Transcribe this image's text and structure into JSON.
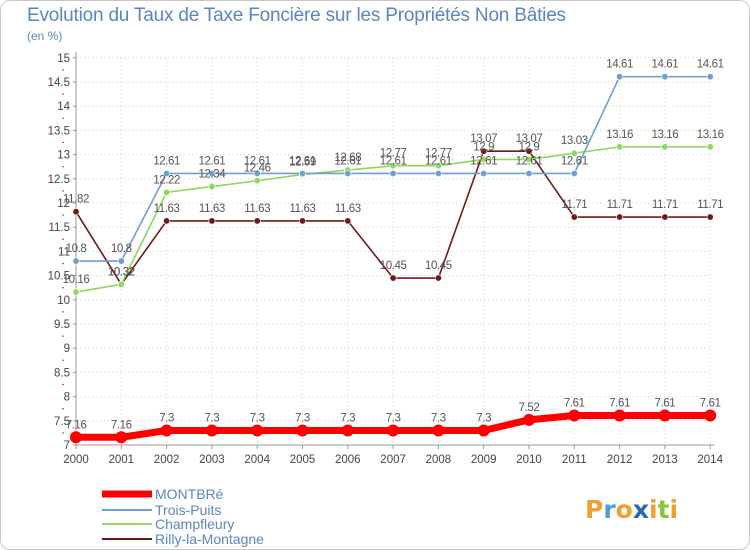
{
  "chart_data": {
    "type": "line",
    "title": "Evolution du Taux de Taxe Foncière sur les Propriétés Non Bâties",
    "ylabel": "(en %)",
    "xlabel": "",
    "ylim": [
      7,
      15
    ],
    "yticks": [
      "7",
      "7.5",
      "8",
      "8.5",
      "9",
      "9.5",
      "10",
      "10.5",
      "11",
      "11.5",
      "12",
      "12.5",
      "13",
      "13.5",
      "14",
      "14.5",
      "15"
    ],
    "categories": [
      "2000",
      "2001",
      "2002",
      "2003",
      "2004",
      "2005",
      "2006",
      "2007",
      "2008",
      "2009",
      "2010",
      "2011",
      "2012",
      "2013",
      "2014"
    ],
    "series": [
      {
        "name": "Rilly-la-Montagne",
        "color": "#6e1a1a",
        "values": [
          11.82,
          10.32,
          11.63,
          11.63,
          11.63,
          11.63,
          11.63,
          10.45,
          10.45,
          13.07,
          13.07,
          11.71,
          11.71,
          11.71,
          11.71
        ],
        "labels": [
          "11.82",
          "10.32",
          "11.63",
          "11.63",
          "11.63",
          "11.63",
          "11.63",
          "10.45",
          "10.45",
          "13.07",
          "13.07",
          "11.71",
          "11.71",
          "11.71",
          "11.71"
        ]
      },
      {
        "name": "Champfleury",
        "color": "#8ed85c",
        "values": [
          10.16,
          10.32,
          12.22,
          12.34,
          12.46,
          12.59,
          12.68,
          12.77,
          12.77,
          12.9,
          12.9,
          13.03,
          13.16,
          13.16,
          13.16
        ],
        "labels": [
          "10.16",
          "10.32",
          "12.22",
          "12.34",
          "12.46",
          "12.59",
          "12.68",
          "12.77",
          "12.77",
          "12.9",
          "12.9",
          "13.03",
          "13.16",
          "13.16",
          "13.16"
        ]
      },
      {
        "name": "Trois-Puits",
        "color": "#6f9fd2",
        "values": [
          10.8,
          10.8,
          12.61,
          12.61,
          12.61,
          12.61,
          12.61,
          12.61,
          12.61,
          12.61,
          12.61,
          12.61,
          14.61,
          14.61,
          14.61
        ],
        "labels": [
          "10.8",
          "10.8",
          "12.61",
          "12.61",
          "12.61",
          "12.61",
          "12.61",
          "12.61",
          "12.61",
          "12.61",
          "12.61",
          "12.61",
          "14.61",
          "14.61",
          "14.61"
        ]
      },
      {
        "name": "MONTBRé",
        "color": "#ff0000",
        "values": [
          7.16,
          7.16,
          7.3,
          7.3,
          7.3,
          7.3,
          7.3,
          7.3,
          7.3,
          7.3,
          7.52,
          7.61,
          7.61,
          7.61,
          7.61
        ],
        "labels": [
          "7.16",
          "7.16",
          "7.3",
          "7.3",
          "7.3",
          "7.3",
          "7.3",
          "7.3",
          "7.3",
          "7.3",
          "7.52",
          "7.61",
          "7.61",
          "7.61",
          "7.61"
        ]
      }
    ],
    "legend": [
      "MONTBRé",
      "Trois-Puits",
      "Champfleury",
      "Rilly-la-Montagne"
    ]
  },
  "logo": {
    "letters": [
      "P",
      "r",
      "o",
      "x",
      "i",
      "t",
      "i"
    ],
    "colors": [
      "#f0a030",
      "#4aa0d8",
      "#f0a030",
      "#2a6bb0",
      "#f0a030",
      "#8ac43e",
      "#f0a030"
    ]
  }
}
